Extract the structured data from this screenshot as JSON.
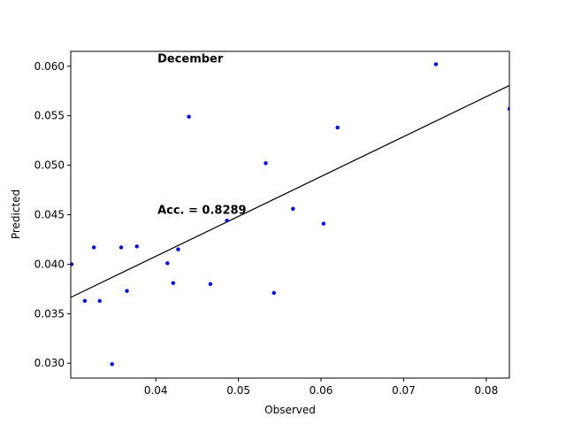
{
  "chart_data": {
    "type": "scatter",
    "title": "",
    "xlabel": "Observed",
    "ylabel": "Predicted",
    "xlim": [
      0.0297,
      0.0828
    ],
    "ylim": [
      0.0285,
      0.0615
    ],
    "xticks": [
      0.04,
      0.05,
      0.06,
      0.07,
      0.08
    ],
    "xtick_labels": [
      "0.04",
      "0.05",
      "0.06",
      "0.07",
      "0.08"
    ],
    "yticks": [
      0.03,
      0.035,
      0.04,
      0.045,
      0.05,
      0.055,
      0.06
    ],
    "ytick_labels": [
      "0.030",
      "0.035",
      "0.040",
      "0.045",
      "0.050",
      "0.055",
      "0.060"
    ],
    "grid": false,
    "point_color": "#0000ff",
    "line_color": "#000000",
    "points": [
      {
        "x": 0.0298,
        "y": 0.04
      },
      {
        "x": 0.0314,
        "y": 0.0363
      },
      {
        "x": 0.0325,
        "y": 0.0417
      },
      {
        "x": 0.0332,
        "y": 0.0363
      },
      {
        "x": 0.0347,
        "y": 0.0299
      },
      {
        "x": 0.0358,
        "y": 0.0417
      },
      {
        "x": 0.0365,
        "y": 0.0373
      },
      {
        "x": 0.0377,
        "y": 0.0418
      },
      {
        "x": 0.0414,
        "y": 0.0401
      },
      {
        "x": 0.0421,
        "y": 0.0381
      },
      {
        "x": 0.0427,
        "y": 0.0415
      },
      {
        "x": 0.044,
        "y": 0.0549
      },
      {
        "x": 0.0466,
        "y": 0.038
      },
      {
        "x": 0.0486,
        "y": 0.0444
      },
      {
        "x": 0.0533,
        "y": 0.0502
      },
      {
        "x": 0.0543,
        "y": 0.0371
      },
      {
        "x": 0.0566,
        "y": 0.0456
      },
      {
        "x": 0.0603,
        "y": 0.0441
      },
      {
        "x": 0.062,
        "y": 0.0538
      },
      {
        "x": 0.0739,
        "y": 0.0602
      },
      {
        "x": 0.0828,
        "y": 0.0557
      }
    ],
    "fit_line": {
      "x": [
        0.0297,
        0.0828
      ],
      "y": [
        0.03665,
        0.05805
      ]
    },
    "annotations": [
      {
        "text": "December",
        "x": 0.0402,
        "y": 0.0604
      },
      {
        "text": "Acc. = 0.8289",
        "x": 0.0402,
        "y": 0.0451
      }
    ]
  }
}
